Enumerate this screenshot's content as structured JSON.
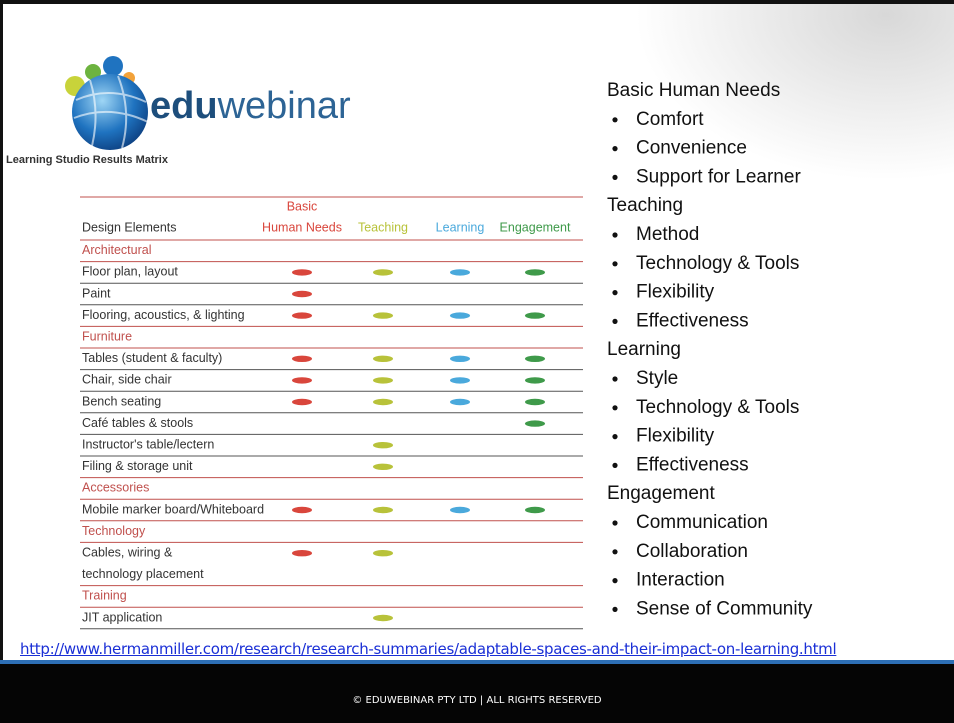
{
  "logo": {
    "brand_bold": "edu",
    "brand_rest": "webinar"
  },
  "subtitle": "Learning Studio Results Matrix",
  "matrix": {
    "columns": [
      [
        "Design Elements"
      ],
      [
        "Basic",
        "Human Needs"
      ],
      [
        "Teaching"
      ],
      [
        "Learning"
      ],
      [
        "Engagement"
      ]
    ],
    "column_colors": [
      "#333333",
      "#d9463c",
      "#b8c23a",
      "#4aa9dc",
      "#3f9a4a"
    ],
    "rows": [
      {
        "section": "Architectural"
      },
      {
        "lines": [
          "Floor plan, layout"
        ],
        "marks": [
          true,
          true,
          true,
          true
        ]
      },
      {
        "lines": [
          "Paint"
        ],
        "marks": [
          true,
          false,
          false,
          false
        ]
      },
      {
        "lines": [
          "Flooring, acoustics, & lighting"
        ],
        "marks": [
          true,
          true,
          true,
          true
        ]
      },
      {
        "section": "Furniture"
      },
      {
        "lines": [
          "Tables (student & faculty)"
        ],
        "marks": [
          true,
          true,
          true,
          true
        ]
      },
      {
        "lines": [
          "Chair, side chair"
        ],
        "marks": [
          true,
          true,
          true,
          true
        ]
      },
      {
        "lines": [
          "Bench seating"
        ],
        "marks": [
          true,
          true,
          true,
          true
        ]
      },
      {
        "lines": [
          "Café tables & stools"
        ],
        "marks": [
          false,
          false,
          false,
          true
        ]
      },
      {
        "lines": [
          "Instructor's table/lectern"
        ],
        "marks": [
          false,
          true,
          false,
          false
        ]
      },
      {
        "lines": [
          "Filing & storage unit"
        ],
        "marks": [
          false,
          true,
          false,
          false
        ]
      },
      {
        "section": "Accessories"
      },
      {
        "lines": [
          "Mobile marker board/Whiteboard"
        ],
        "marks": [
          true,
          true,
          true,
          true
        ]
      },
      {
        "section": "Technology"
      },
      {
        "lines": [
          "Cables, wiring &",
          "technology placement"
        ],
        "marks": [
          true,
          true,
          false,
          false
        ]
      },
      {
        "section": "Training"
      },
      {
        "lines": [
          "JIT application"
        ],
        "marks": [
          false,
          true,
          false,
          false
        ]
      }
    ]
  },
  "needs": [
    {
      "heading": "Basic Human Needs",
      "items": [
        "Comfort",
        "Convenience",
        "Support for Learner"
      ]
    },
    {
      "heading": "Teaching",
      "items": [
        "Method",
        "Technology & Tools",
        "Flexibility",
        "Effectiveness"
      ]
    },
    {
      "heading": "Learning",
      "items": [
        "Style",
        "Technology & Tools",
        "Flexibility",
        "Effectiveness"
      ]
    },
    {
      "heading": "Engagement",
      "items": [
        "Communication",
        "Collaboration",
        "Interaction",
        "Sense of Community"
      ]
    }
  ],
  "link": "http://www.hermanmiller.com/research/research-summaries/adaptable-spaces-and-their-impact-on-learning.html",
  "footer": "© EDUWEBINAR PTY LTD | ALL RIGHTS RESERVED"
}
